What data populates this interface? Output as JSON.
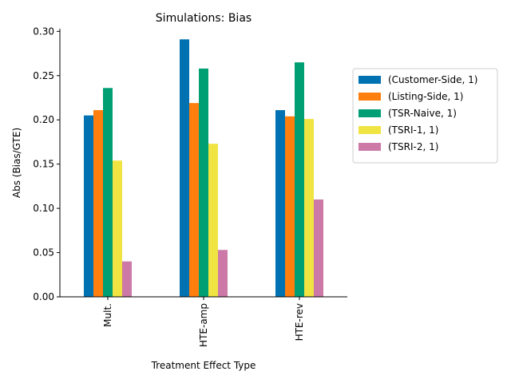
{
  "chart_data": {
    "type": "bar",
    "title": "Simulations: Bias",
    "xlabel": "Treatment Effect Type",
    "ylabel": "Abs (Bias/GTE)",
    "ylim": [
      0,
      0.303
    ],
    "yticks": [
      "0.00",
      "0.05",
      "0.10",
      "0.15",
      "0.20",
      "0.25",
      "0.30"
    ],
    "ytick_values": [
      0,
      0.05,
      0.1,
      0.15,
      0.2,
      0.25,
      0.3
    ],
    "categories": [
      "Mult.",
      "HTE-amp",
      "HTE-rev"
    ],
    "legend_position": "right, outside plot",
    "grid": false,
    "series": [
      {
        "name": "(Customer-Side, 1)",
        "color": "#0072b2",
        "values": [
          0.205,
          0.291,
          0.211
        ]
      },
      {
        "name": "(Listing-Side, 1)",
        "color": "#ff7f0e",
        "values": [
          0.211,
          0.219,
          0.204
        ]
      },
      {
        "name": "(TSR-Naive, 1)",
        "color": "#009e73",
        "values": [
          0.236,
          0.258,
          0.265
        ]
      },
      {
        "name": "(TSRI-1, 1)",
        "color": "#f0e442",
        "values": [
          0.154,
          0.173,
          0.201
        ]
      },
      {
        "name": "(TSRI-2, 1)",
        "color": "#cc79a7",
        "values": [
          0.04,
          0.053,
          0.11
        ]
      }
    ]
  }
}
